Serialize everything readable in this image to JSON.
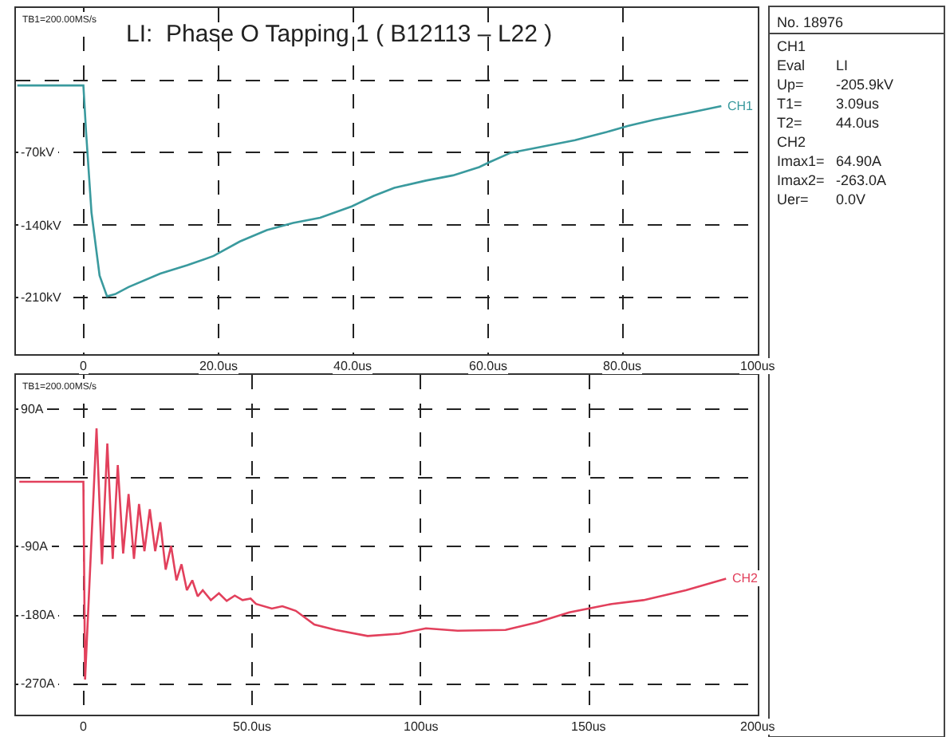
{
  "chart_data": [
    {
      "type": "line",
      "title": "LI:  Phase O Tapping 1 ( B12113 – L22 )",
      "annotations": [
        "TB1=200.00MS/s"
      ],
      "series": [
        {
          "name": "CH1",
          "color": "#3a9a9e",
          "x": [
            -9.8,
            0,
            0.4,
            1.2,
            2.4,
            3.5,
            4.7,
            6.7,
            11.4,
            15.4,
            19.3,
            23.2,
            27.2,
            31.1,
            35.1,
            39.8,
            43,
            46.1,
            50.8,
            54.8,
            58.7,
            60.3,
            63.4,
            66.6,
            72.9,
            77.6,
            80.8,
            84.7,
            90.2,
            94.6
          ],
          "values": [
            -5,
            -5,
            -50,
            -128,
            -189,
            -209,
            -207,
            -200,
            -187,
            -179,
            -170,
            -156,
            -145,
            -138,
            -133,
            -122,
            -112,
            -104,
            -97,
            -92,
            -84,
            -79,
            -70,
            -66,
            -58,
            -50,
            -44,
            -38,
            -31,
            -25
          ]
        }
      ],
      "xlim": [
        -10,
        100
      ],
      "ylim": [
        -265,
        70
      ],
      "xticks": [
        {
          "value": 0,
          "label": "0"
        },
        {
          "value": 20,
          "label": "20.0us"
        },
        {
          "value": 40,
          "label": "40.0us"
        },
        {
          "value": 60,
          "label": "60.0us"
        },
        {
          "value": 80,
          "label": "80.0us"
        },
        {
          "value": 100,
          "label": "100us"
        }
      ],
      "yticks": [
        {
          "value": 0,
          "label": null
        },
        {
          "value": -70,
          "label": "-70kV"
        },
        {
          "value": -140,
          "label": "-140kV"
        },
        {
          "value": -210,
          "label": "-210kV"
        }
      ],
      "grid": true,
      "line_style": "solid",
      "marker": "none"
    },
    {
      "type": "line",
      "annotations": [
        "TB1=200.00MS/s"
      ],
      "series": [
        {
          "name": "CH2",
          "color": "#e2405c",
          "x": [
            -19,
            0,
            0.5,
            3.9,
            5.5,
            7.1,
            8.7,
            10.2,
            11.8,
            13.4,
            15,
            16.5,
            18.1,
            19.7,
            21.3,
            22.8,
            24.4,
            26,
            27.6,
            29.1,
            30.7,
            32.3,
            33.9,
            35.4,
            37.8,
            40.2,
            42.5,
            44.9,
            47.2,
            49.6,
            51.2,
            55.9,
            59,
            63,
            68.5,
            74.8,
            84.3,
            93.7,
            101.6,
            111,
            125.2,
            134.6,
            144.1,
            156.7,
            166.1,
            178.7,
            190.6
          ],
          "values": [
            -5,
            -5,
            -264,
            65,
            -113,
            45,
            -106,
            17,
            -99,
            -21,
            -106,
            -34,
            -96,
            -41,
            -96,
            -58,
            -120,
            -89,
            -134,
            -113,
            -147,
            -134,
            -155,
            -147,
            -160,
            -151,
            -161,
            -154,
            -160,
            -158,
            -165,
            -171,
            -168,
            -174,
            -192,
            -199,
            -207,
            -204,
            -197,
            -200,
            -199,
            -189,
            -176,
            -165,
            -160,
            -147,
            -132
          ]
        }
      ],
      "xlim": [
        -20,
        200
      ],
      "ylim": [
        -310,
        135
      ],
      "xticks": [
        {
          "value": 0,
          "label": "0"
        },
        {
          "value": 50,
          "label": "50.0us"
        },
        {
          "value": 100,
          "label": "100us"
        },
        {
          "value": 150,
          "label": "150us"
        },
        {
          "value": 200,
          "label": "200us"
        }
      ],
      "yticks": [
        {
          "value": 90,
          "label": "90A"
        },
        {
          "value": 0,
          "label": null
        },
        {
          "value": -90,
          "label": "-90A"
        },
        {
          "value": -180,
          "label": "-180A"
        },
        {
          "value": -270,
          "label": "-270A"
        }
      ],
      "grid": true,
      "line_style": "solid",
      "marker": "none"
    },
    {
      "type": "other",
      "title": "No. 18976",
      "annotations": [
        "CH1",
        "Eval LI",
        "Up= -205.9kV",
        "T1= 3.09us",
        "T2= 44.0us",
        "CH2",
        "Imax1= 64.90A",
        "Imax2= -263.0A",
        "Uer= 0.0V"
      ]
    }
  ]
}
